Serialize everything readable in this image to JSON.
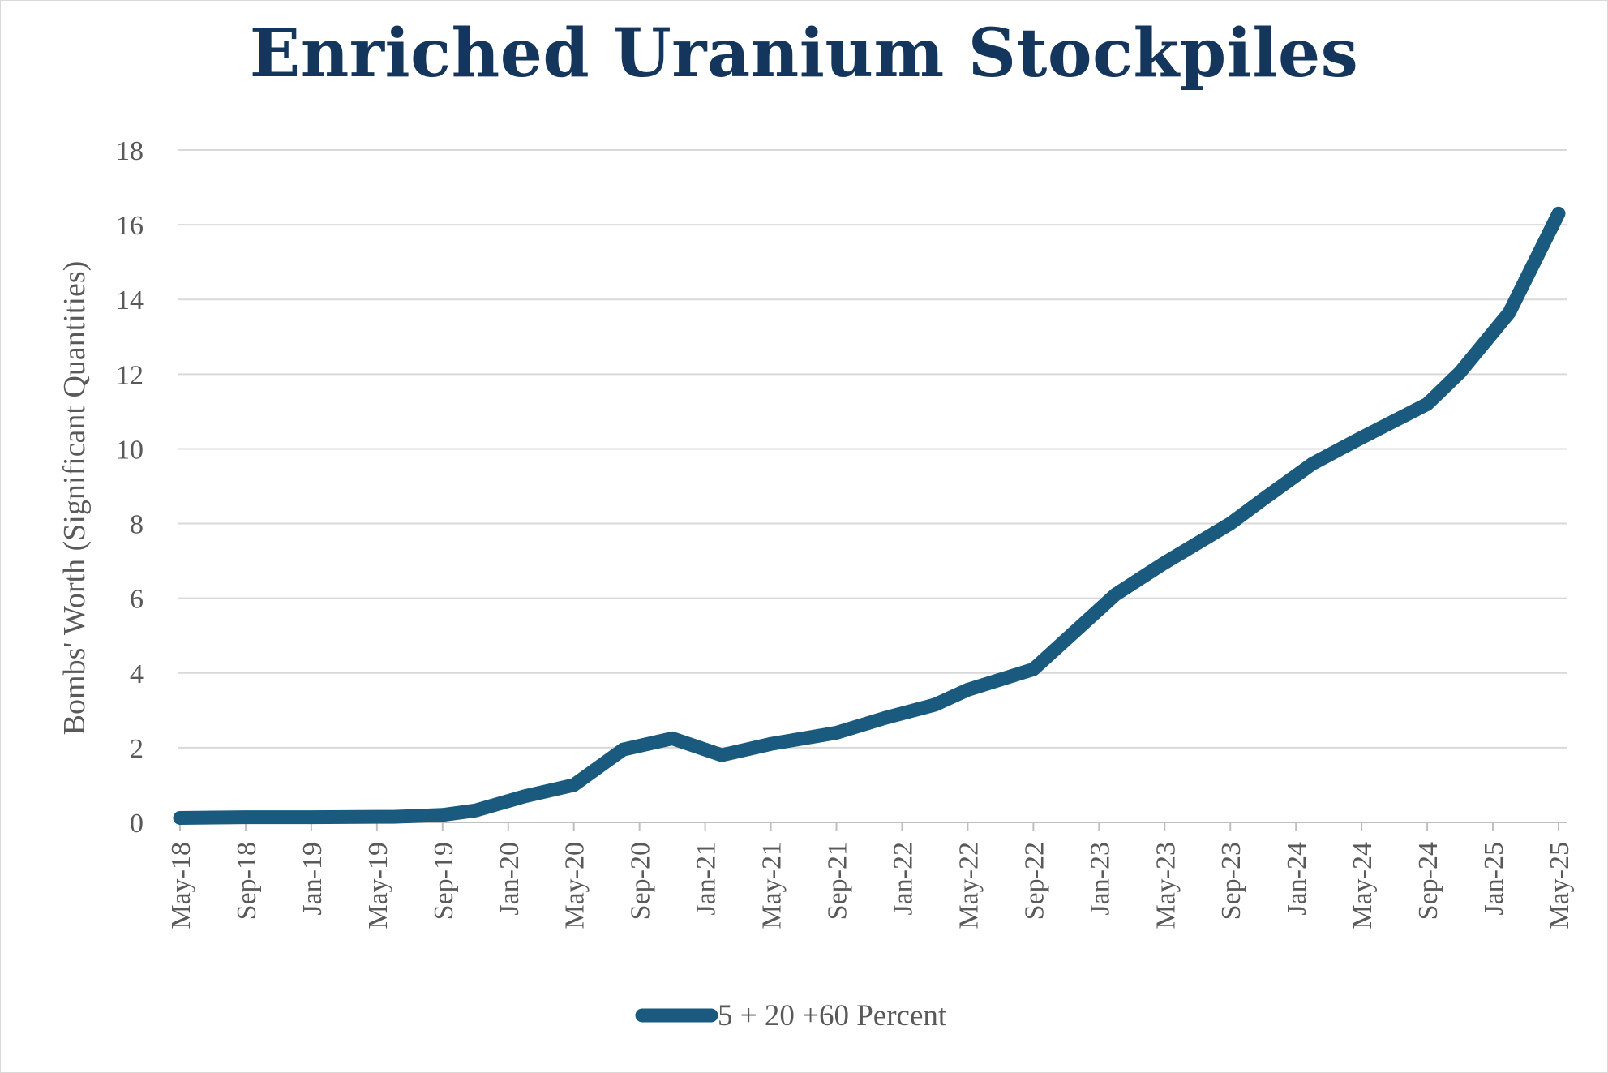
{
  "chart_data": {
    "type": "line",
    "title": "Enriched Uranium Stockpiles",
    "ylabel": "Bombs' Worth (Significant Quantities)",
    "xlabel": "",
    "ylim": [
      0,
      18
    ],
    "yticks": [
      0,
      2,
      4,
      6,
      8,
      10,
      12,
      14,
      16,
      18
    ],
    "grid": "horizontal",
    "legend_position": "bottom",
    "x_range": [
      "2018-05",
      "2025-05"
    ],
    "x_tick_labels": [
      "May-18",
      "Sep-18",
      "Jan-19",
      "May-19",
      "Sep-19",
      "Jan-20",
      "May-20",
      "Sep-20",
      "Jan-21",
      "May-21",
      "Sep-21",
      "Jan-22",
      "May-22",
      "Sep-22",
      "Jan-23",
      "May-23",
      "Sep-23",
      "Jan-24",
      "May-24",
      "Sep-24",
      "Jan-25",
      "May-25"
    ],
    "series": [
      {
        "name": "5 + 20 +60 Percent",
        "color": "#1a5a7e",
        "points": [
          {
            "x": "2018-05",
            "y": 0.12
          },
          {
            "x": "2018-09",
            "y": 0.14
          },
          {
            "x": "2019-01",
            "y": 0.14
          },
          {
            "x": "2019-05",
            "y": 0.15
          },
          {
            "x": "2019-06",
            "y": 0.15
          },
          {
            "x": "2019-09",
            "y": 0.2
          },
          {
            "x": "2019-11",
            "y": 0.32
          },
          {
            "x": "2020-02",
            "y": 0.7
          },
          {
            "x": "2020-05",
            "y": 1.0
          },
          {
            "x": "2020-08",
            "y": 1.95
          },
          {
            "x": "2020-11",
            "y": 2.25
          },
          {
            "x": "2021-02",
            "y": 1.8
          },
          {
            "x": "2021-05",
            "y": 2.1
          },
          {
            "x": "2021-09",
            "y": 2.4
          },
          {
            "x": "2021-12",
            "y": 2.8
          },
          {
            "x": "2022-03",
            "y": 3.15
          },
          {
            "x": "2022-05",
            "y": 3.55
          },
          {
            "x": "2022-09",
            "y": 4.1
          },
          {
            "x": "2023-02",
            "y": 6.1
          },
          {
            "x": "2023-05",
            "y": 6.95
          },
          {
            "x": "2023-09",
            "y": 8.0
          },
          {
            "x": "2023-11",
            "y": 8.65
          },
          {
            "x": "2024-02",
            "y": 9.6
          },
          {
            "x": "2024-05",
            "y": 10.3
          },
          {
            "x": "2024-09",
            "y": 11.2
          },
          {
            "x": "2024-11",
            "y": 12.05
          },
          {
            "x": "2025-02",
            "y": 13.65
          },
          {
            "x": "2025-05",
            "y": 16.3
          }
        ]
      }
    ]
  }
}
